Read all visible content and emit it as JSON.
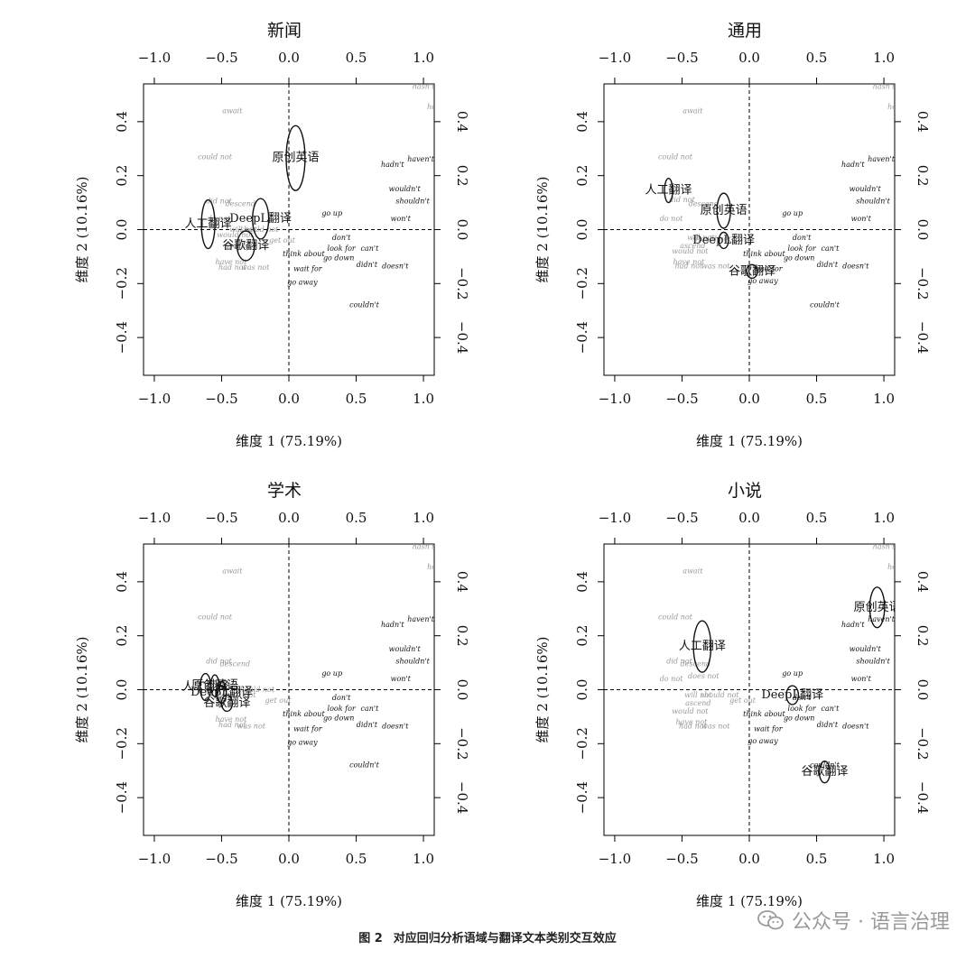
{
  "caption": {
    "label": "图 2",
    "text": "对应回归分析语域与翻译文本类别交互效应"
  },
  "watermark": {
    "text": "公众号 · 语言治理"
  },
  "chart_data": [
    {
      "type": "scatter",
      "title": "新闻",
      "xlabel": "维度 1 (75.19%)",
      "ylabel": "维度 2 (10.16%)",
      "xlim": [
        -1.08,
        1.08
      ],
      "ylim": [
        -0.54,
        0.54
      ],
      "xticks": [
        -1.0,
        -0.5,
        0.0,
        0.5,
        1.0
      ],
      "yticks": [
        -0.4,
        -0.2,
        0.0,
        0.2,
        0.4
      ],
      "gray_labels": [
        {
          "label": "await",
          "x": -0.42,
          "y": 0.44
        },
        {
          "label": "could not",
          "x": -0.55,
          "y": 0.27
        },
        {
          "label": "did not",
          "x": -0.52,
          "y": 0.105
        },
        {
          "label": "descend",
          "x": -0.36,
          "y": 0.095
        },
        {
          "label": "do not",
          "x": -0.52,
          "y": 0.04
        },
        {
          "label": "would not",
          "x": -0.4,
          "y": -0.02
        },
        {
          "label": "should not",
          "x": -0.22,
          "y": 0.0
        },
        {
          "label": "will not",
          "x": -0.34,
          "y": 0.0
        },
        {
          "label": "ascend",
          "x": -0.38,
          "y": -0.06
        },
        {
          "label": "get out",
          "x": -0.05,
          "y": -0.04
        },
        {
          "label": "have not",
          "x": -0.43,
          "y": -0.12
        },
        {
          "label": "had not",
          "x": -0.42,
          "y": -0.14
        },
        {
          "label": "was not",
          "x": -0.25,
          "y": -0.14
        },
        {
          "label": "hasn't",
          "x": 1.0,
          "y": 0.53
        },
        {
          "label": "he",
          "x": 1.06,
          "y": 0.455
        }
      ],
      "black_labels": [
        {
          "label": "haven't",
          "x": 0.98,
          "y": 0.26
        },
        {
          "label": "hadn't",
          "x": 0.77,
          "y": 0.24
        },
        {
          "label": "wouldn't",
          "x": 0.86,
          "y": 0.15
        },
        {
          "label": "shouldn't",
          "x": 0.92,
          "y": 0.105
        },
        {
          "label": "won't",
          "x": 0.83,
          "y": 0.04
        },
        {
          "label": "go up",
          "x": 0.32,
          "y": 0.06
        },
        {
          "label": "don't",
          "x": 0.39,
          "y": -0.03
        },
        {
          "label": "look for",
          "x": 0.39,
          "y": -0.07
        },
        {
          "label": "can't",
          "x": 0.6,
          "y": -0.07
        },
        {
          "label": "think about",
          "x": 0.11,
          "y": -0.09
        },
        {
          "label": "go down",
          "x": 0.37,
          "y": -0.105
        },
        {
          "label": "didn't",
          "x": 0.58,
          "y": -0.13
        },
        {
          "label": "doesn't",
          "x": 0.79,
          "y": -0.135
        },
        {
          "label": "wait for",
          "x": 0.14,
          "y": -0.145
        },
        {
          "label": "go away",
          "x": 0.1,
          "y": -0.195
        },
        {
          "label": "couldn't",
          "x": 0.56,
          "y": -0.28
        }
      ],
      "ellipses": [
        {
          "label": "原创英语",
          "x": 0.05,
          "y": 0.265,
          "rx": 0.07,
          "ry": 0.12
        },
        {
          "label": "DeepL翻译",
          "x": -0.21,
          "y": 0.04,
          "rx": 0.06,
          "ry": 0.075
        },
        {
          "label": "人工翻译",
          "x": -0.6,
          "y": 0.02,
          "rx": 0.05,
          "ry": 0.09
        },
        {
          "label": "谷歌翻译",
          "x": -0.32,
          "y": -0.06,
          "rx": 0.065,
          "ry": 0.055
        }
      ]
    },
    {
      "type": "scatter",
      "title": "通用",
      "xlabel": "维度 1 (75.19%)",
      "ylabel": "维度 2 (10.16%)",
      "xlim": [
        -1.08,
        1.08
      ],
      "ylim": [
        -0.54,
        0.54
      ],
      "xticks": [
        -1.0,
        -0.5,
        0.0,
        0.5,
        1.0
      ],
      "yticks": [
        -0.4,
        -0.2,
        0.0,
        0.2,
        0.4
      ],
      "gray_labels": [
        {
          "label": "await",
          "x": -0.42,
          "y": 0.44
        },
        {
          "label": "could not",
          "x": -0.55,
          "y": 0.27
        },
        {
          "label": "did not",
          "x": -0.5,
          "y": 0.11
        },
        {
          "label": "descend",
          "x": -0.34,
          "y": 0.095
        },
        {
          "label": "do not",
          "x": -0.58,
          "y": 0.04
        },
        {
          "label": "would not",
          "x": -0.44,
          "y": -0.08
        },
        {
          "label": "should not",
          "x": -0.28,
          "y": -0.035
        },
        {
          "label": "will not",
          "x": -0.36,
          "y": -0.03
        },
        {
          "label": "ascend",
          "x": -0.42,
          "y": -0.06
        },
        {
          "label": "have not",
          "x": -0.45,
          "y": -0.12
        },
        {
          "label": "had not",
          "x": -0.45,
          "y": -0.135
        },
        {
          "label": "was not",
          "x": -0.25,
          "y": -0.135
        },
        {
          "label": "hasn't",
          "x": 1.0,
          "y": 0.53
        },
        {
          "label": "he",
          "x": 1.06,
          "y": 0.455
        }
      ],
      "black_labels": [
        {
          "label": "haven't",
          "x": 0.98,
          "y": 0.26
        },
        {
          "label": "hadn't",
          "x": 0.77,
          "y": 0.24
        },
        {
          "label": "wouldn't",
          "x": 0.86,
          "y": 0.15
        },
        {
          "label": "shouldn't",
          "x": 0.92,
          "y": 0.105
        },
        {
          "label": "won't",
          "x": 0.83,
          "y": 0.04
        },
        {
          "label": "go up",
          "x": 0.32,
          "y": 0.06
        },
        {
          "label": "don't",
          "x": 0.39,
          "y": -0.03
        },
        {
          "label": "look for",
          "x": 0.39,
          "y": -0.07
        },
        {
          "label": "can't",
          "x": 0.6,
          "y": -0.07
        },
        {
          "label": "think about",
          "x": 0.11,
          "y": -0.09
        },
        {
          "label": "go down",
          "x": 0.37,
          "y": -0.105
        },
        {
          "label": "didn't",
          "x": 0.58,
          "y": -0.13
        },
        {
          "label": "doesn't",
          "x": 0.79,
          "y": -0.135
        },
        {
          "label": "wait for",
          "x": 0.14,
          "y": -0.145
        },
        {
          "label": "go away",
          "x": 0.1,
          "y": -0.19
        },
        {
          "label": "couldn't",
          "x": 0.56,
          "y": -0.28
        }
      ],
      "ellipses": [
        {
          "label": "人工翻译",
          "x": -0.6,
          "y": 0.145,
          "rx": 0.03,
          "ry": 0.045
        },
        {
          "label": "原创英语",
          "x": -0.19,
          "y": 0.07,
          "rx": 0.05,
          "ry": 0.065
        },
        {
          "label": "DeepL翻译",
          "x": -0.19,
          "y": -0.04,
          "rx": 0.035,
          "ry": 0.03
        },
        {
          "label": "谷歌翻译",
          "x": 0.02,
          "y": -0.155,
          "rx": 0.04,
          "ry": 0.025
        }
      ]
    },
    {
      "type": "scatter",
      "title": "学术",
      "xlabel": "维度 1 (75.19%)",
      "ylabel": "维度 2 (10.16%)",
      "xlim": [
        -1.08,
        1.08
      ],
      "ylim": [
        -0.54,
        0.54
      ],
      "xticks": [
        -1.0,
        -0.5,
        0.0,
        0.5,
        1.0
      ],
      "yticks": [
        -0.4,
        -0.2,
        0.0,
        0.2,
        0.4
      ],
      "gray_labels": [
        {
          "label": "await",
          "x": -0.42,
          "y": 0.44
        },
        {
          "label": "could not",
          "x": -0.55,
          "y": 0.27
        },
        {
          "label": "did not",
          "x": -0.52,
          "y": 0.105
        },
        {
          "label": "descend",
          "x": -0.4,
          "y": 0.095
        },
        {
          "label": "should not",
          "x": -0.25,
          "y": 0.0
        },
        {
          "label": "would not",
          "x": -0.38,
          "y": -0.02
        },
        {
          "label": "get out",
          "x": -0.08,
          "y": -0.04
        },
        {
          "label": "have not",
          "x": -0.43,
          "y": -0.11
        },
        {
          "label": "had not",
          "x": -0.42,
          "y": -0.13
        },
        {
          "label": "was not",
          "x": -0.28,
          "y": -0.135
        },
        {
          "label": "hasn't",
          "x": 1.0,
          "y": 0.53
        },
        {
          "label": "he",
          "x": 1.06,
          "y": 0.455
        }
      ],
      "black_labels": [
        {
          "label": "haven't",
          "x": 0.98,
          "y": 0.26
        },
        {
          "label": "hadn't",
          "x": 0.77,
          "y": 0.24
        },
        {
          "label": "wouldn't",
          "x": 0.86,
          "y": 0.15
        },
        {
          "label": "shouldn't",
          "x": 0.92,
          "y": 0.105
        },
        {
          "label": "won't",
          "x": 0.83,
          "y": 0.04
        },
        {
          "label": "go up",
          "x": 0.32,
          "y": 0.06
        },
        {
          "label": "don't",
          "x": 0.39,
          "y": -0.03
        },
        {
          "label": "look for",
          "x": 0.39,
          "y": -0.07
        },
        {
          "label": "can't",
          "x": 0.6,
          "y": -0.07
        },
        {
          "label": "think about",
          "x": 0.11,
          "y": -0.09
        },
        {
          "label": "go down",
          "x": 0.37,
          "y": -0.105
        },
        {
          "label": "didn't",
          "x": 0.58,
          "y": -0.13
        },
        {
          "label": "doesn't",
          "x": 0.79,
          "y": -0.135
        },
        {
          "label": "wait for",
          "x": 0.14,
          "y": -0.145
        },
        {
          "label": "go away",
          "x": 0.1,
          "y": -0.195
        },
        {
          "label": "couldn't",
          "x": 0.56,
          "y": -0.28
        }
      ],
      "ellipses": [
        {
          "label": "人工翻译",
          "x": -0.62,
          "y": 0.01,
          "rx": 0.04,
          "ry": 0.05
        },
        {
          "label": "原创英语",
          "x": -0.55,
          "y": 0.015,
          "rx": 0.03,
          "ry": 0.04
        },
        {
          "label": "DeepL翻译",
          "x": -0.5,
          "y": -0.01,
          "rx": 0.035,
          "ry": 0.04
        },
        {
          "label": "谷歌翻译",
          "x": -0.46,
          "y": -0.05,
          "rx": 0.04,
          "ry": 0.03
        }
      ]
    },
    {
      "type": "scatter",
      "title": "小说",
      "xlabel": "维度 1 (75.19%)",
      "ylabel": "维度 2 (10.16%)",
      "xlim": [
        -1.08,
        1.08
      ],
      "ylim": [
        -0.54,
        0.54
      ],
      "xticks": [
        -1.0,
        -0.5,
        0.0,
        0.5,
        1.0
      ],
      "yticks": [
        -0.4,
        -0.2,
        0.0,
        0.2,
        0.4
      ],
      "gray_labels": [
        {
          "label": "await",
          "x": -0.42,
          "y": 0.44
        },
        {
          "label": "could not",
          "x": -0.55,
          "y": 0.27
        },
        {
          "label": "did not",
          "x": -0.52,
          "y": 0.105
        },
        {
          "label": "descend",
          "x": -0.4,
          "y": 0.095
        },
        {
          "label": "do not",
          "x": -0.58,
          "y": 0.04
        },
        {
          "label": "does not",
          "x": -0.34,
          "y": 0.05
        },
        {
          "label": "will not",
          "x": -0.38,
          "y": -0.02
        },
        {
          "label": "should not",
          "x": -0.22,
          "y": -0.02
        },
        {
          "label": "get out",
          "x": -0.05,
          "y": -0.04
        },
        {
          "label": "ascend",
          "x": -0.38,
          "y": -0.05
        },
        {
          "label": "would not",
          "x": -0.44,
          "y": -0.08
        },
        {
          "label": "have not",
          "x": -0.43,
          "y": -0.12
        },
        {
          "label": "had not",
          "x": -0.42,
          "y": -0.135
        },
        {
          "label": "was not",
          "x": -0.25,
          "y": -0.135
        },
        {
          "label": "hasn't",
          "x": 1.0,
          "y": 0.53
        },
        {
          "label": "he",
          "x": 1.06,
          "y": 0.455
        }
      ],
      "black_labels": [
        {
          "label": "haven't",
          "x": 0.98,
          "y": 0.26
        },
        {
          "label": "hadn't",
          "x": 0.77,
          "y": 0.24
        },
        {
          "label": "wouldn't",
          "x": 0.86,
          "y": 0.15
        },
        {
          "label": "shouldn't",
          "x": 0.92,
          "y": 0.105
        },
        {
          "label": "won't",
          "x": 0.83,
          "y": 0.04
        },
        {
          "label": "go up",
          "x": 0.32,
          "y": 0.06
        },
        {
          "label": "don't",
          "x": 0.39,
          "y": -0.03
        },
        {
          "label": "look for",
          "x": 0.39,
          "y": -0.07
        },
        {
          "label": "can't",
          "x": 0.6,
          "y": -0.07
        },
        {
          "label": "think about",
          "x": 0.11,
          "y": -0.09
        },
        {
          "label": "go down",
          "x": 0.37,
          "y": -0.105
        },
        {
          "label": "didn't",
          "x": 0.58,
          "y": -0.13
        },
        {
          "label": "doesn't",
          "x": 0.79,
          "y": -0.135
        },
        {
          "label": "wait for",
          "x": 0.14,
          "y": -0.145
        },
        {
          "label": "go away",
          "x": 0.1,
          "y": -0.19
        },
        {
          "label": "couldn't",
          "x": 0.56,
          "y": -0.28
        }
      ],
      "ellipses": [
        {
          "label": "原创英语",
          "x": 0.95,
          "y": 0.305,
          "rx": 0.055,
          "ry": 0.075
        },
        {
          "label": "人工翻译",
          "x": -0.35,
          "y": 0.16,
          "rx": 0.065,
          "ry": 0.095
        },
        {
          "label": "DeepL翻译",
          "x": 0.32,
          "y": -0.02,
          "rx": 0.045,
          "ry": 0.035
        },
        {
          "label": "谷歌翻译",
          "x": 0.56,
          "y": -0.305,
          "rx": 0.04,
          "ry": 0.04
        }
      ]
    }
  ]
}
